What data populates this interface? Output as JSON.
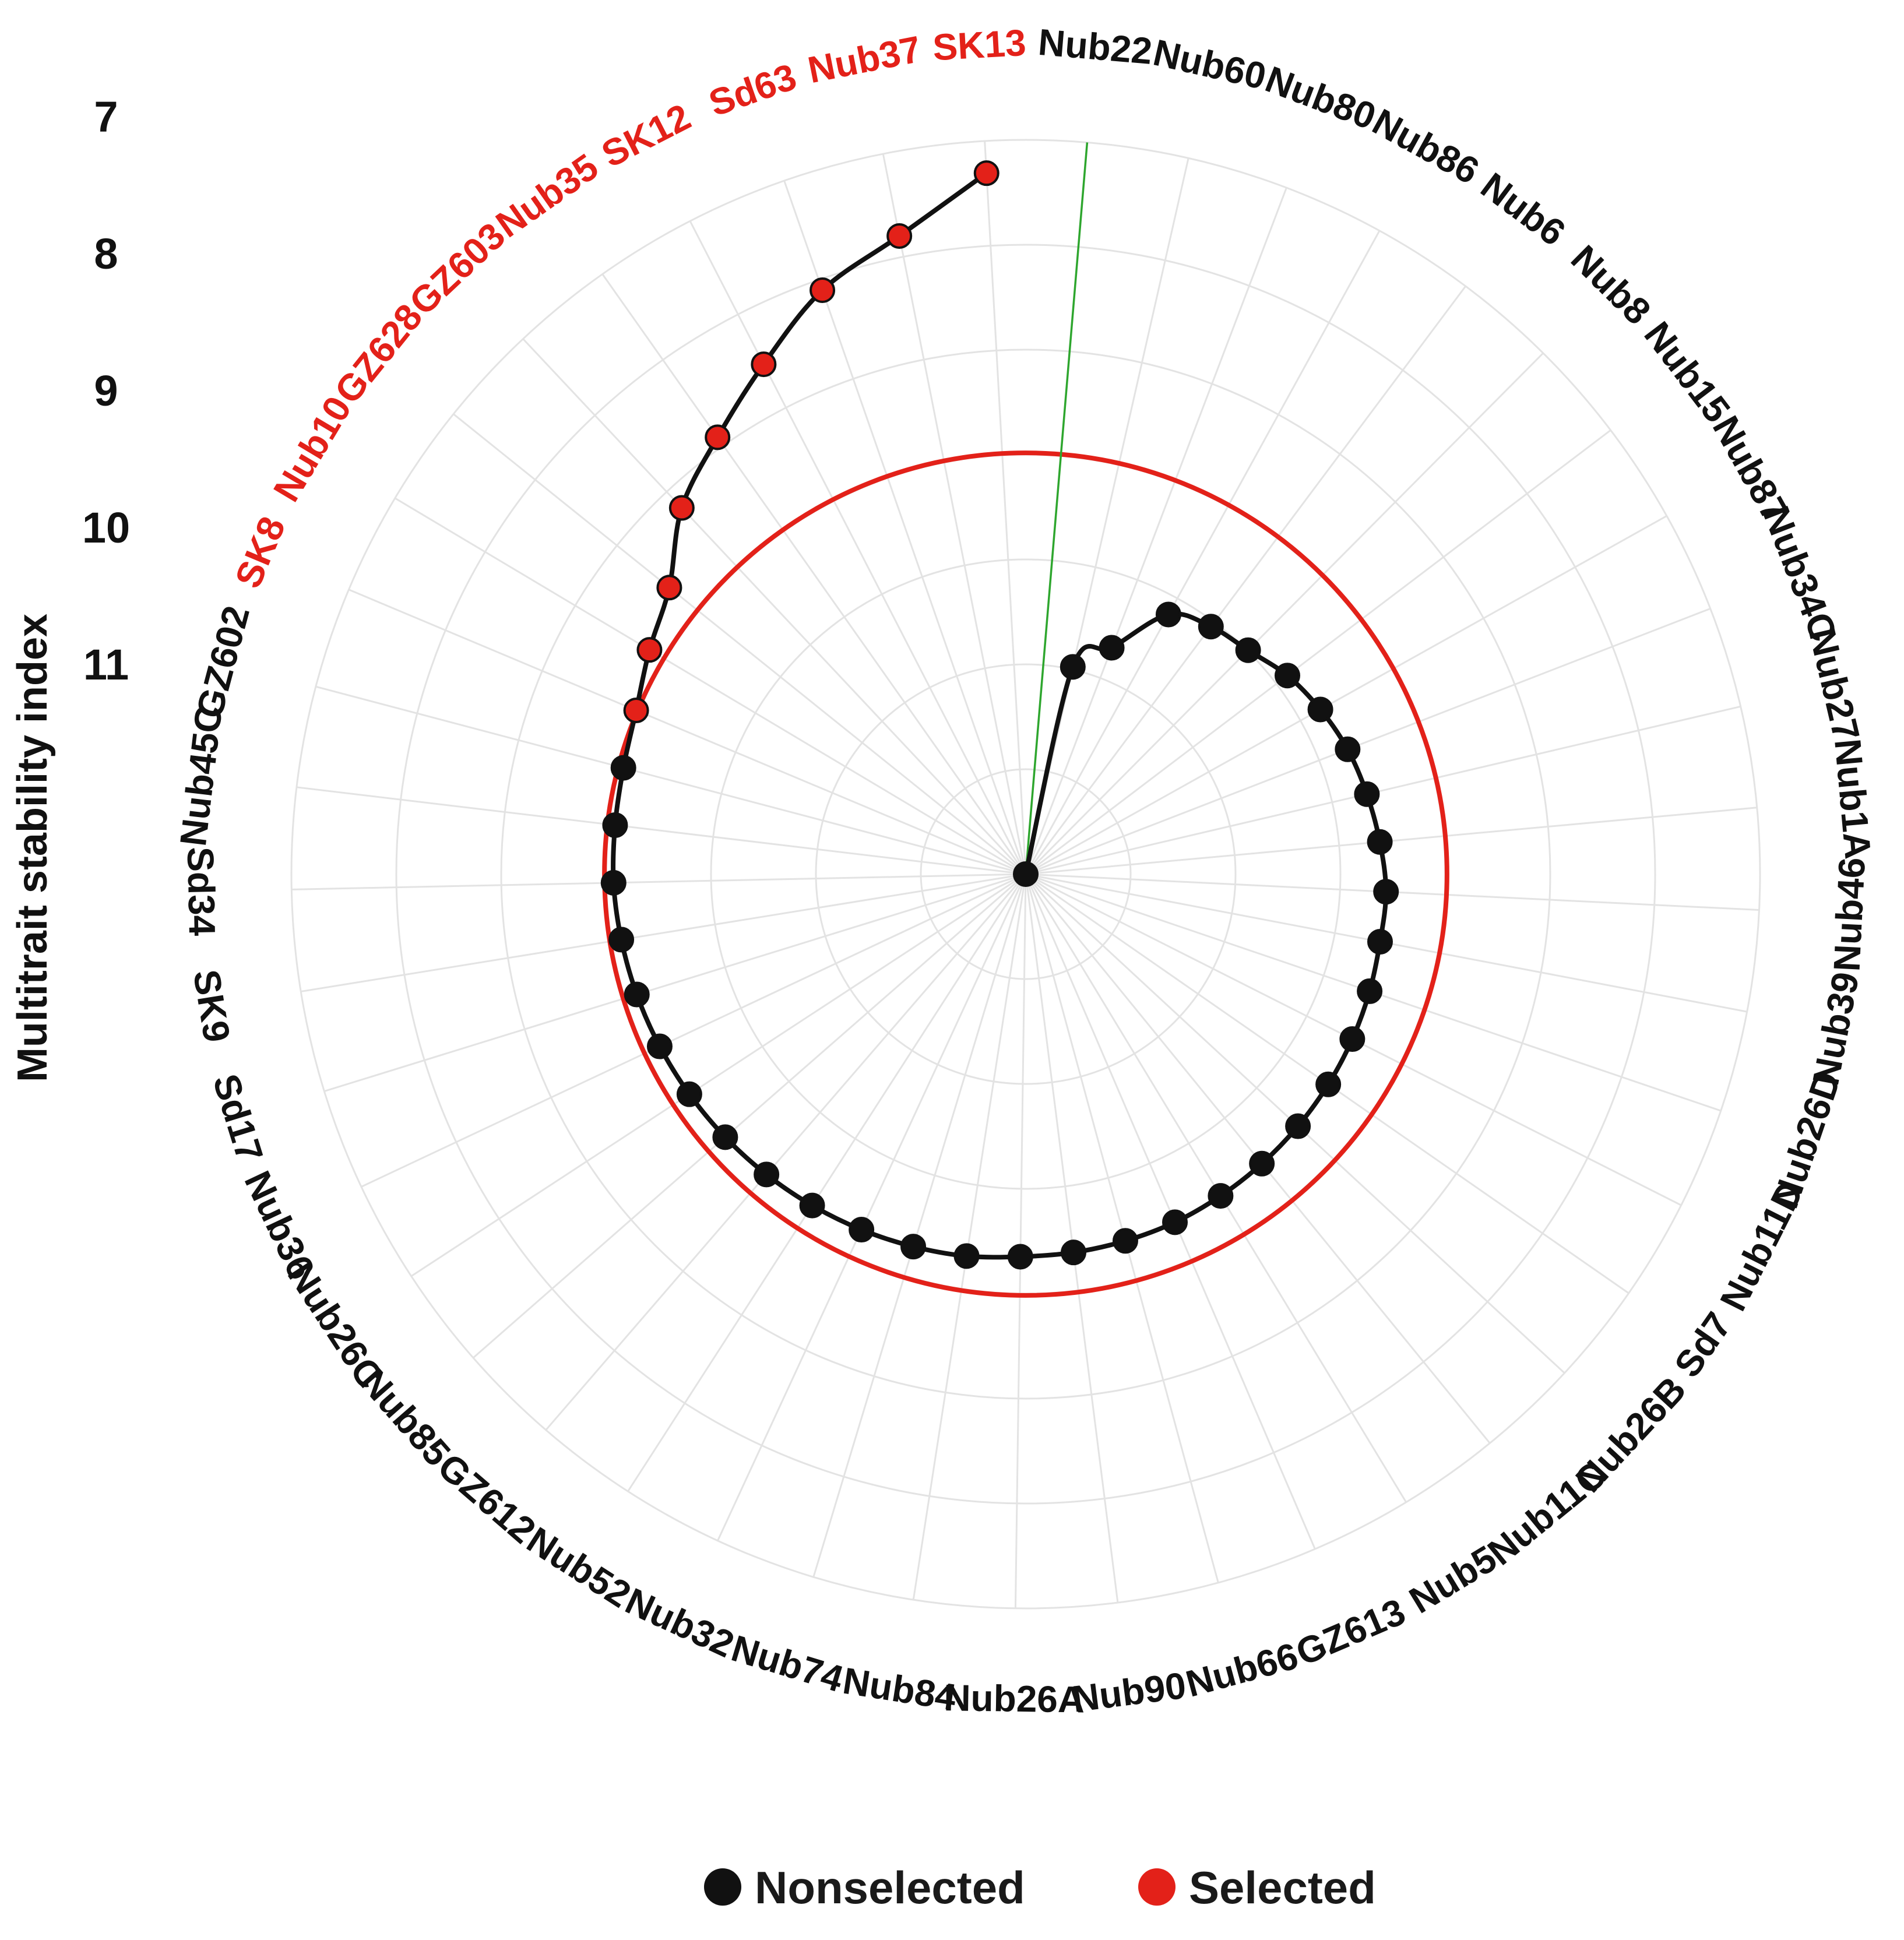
{
  "chart_data": {
    "type": "polar-line",
    "title": "",
    "ylabel": "Multitrait stability index",
    "ylim": [
      11.9,
      6.2
    ],
    "axis_ticks": [
      7,
      8,
      9,
      10,
      11
    ],
    "threshold": 8.63,
    "colors": {
      "selected": "#e32119",
      "nonselected": "#111111",
      "threshold": "#e32119",
      "ideotype_line": "#2ea62e",
      "grid": "#e3e3e3"
    },
    "genotypes": [
      {
        "label": "Nub22",
        "value": 11.9,
        "selected": false
      },
      {
        "label": "Nub60",
        "value": 10.25,
        "selected": false
      },
      {
        "label": "Nub80",
        "value": 10.02,
        "selected": false
      },
      {
        "label": "Nub86",
        "value": 9.6,
        "selected": false
      },
      {
        "label": "Nub6",
        "value": 9.5,
        "selected": false
      },
      {
        "label": "Nub8",
        "value": 9.45,
        "selected": false
      },
      {
        "label": "Nub15",
        "value": 9.35,
        "selected": false
      },
      {
        "label": "Nub87",
        "value": 9.28,
        "selected": false
      },
      {
        "label": "Nub34C",
        "value": 9.22,
        "selected": false
      },
      {
        "label": "Nub27",
        "value": 9.18,
        "selected": false
      },
      {
        "label": "Nub1A",
        "value": 9.14,
        "selected": false
      },
      {
        "label": "Nub46",
        "value": 9.1,
        "selected": false
      },
      {
        "label": "Nub39",
        "value": 9.1,
        "selected": false
      },
      {
        "label": "Nub26D",
        "value": 9.08,
        "selected": false
      },
      {
        "label": "Nub11D",
        "value": 9.06,
        "selected": false
      },
      {
        "label": "Sd7",
        "value": 9.04,
        "selected": false
      },
      {
        "label": "Nub26B",
        "value": 9.02,
        "selected": false
      },
      {
        "label": "Nub11C",
        "value": 9.0,
        "selected": false
      },
      {
        "label": "Nub5",
        "value": 8.98,
        "selected": false
      },
      {
        "label": "GZ613",
        "value": 8.96,
        "selected": false
      },
      {
        "label": "Nub66",
        "value": 8.95,
        "selected": false
      },
      {
        "label": "Nub90",
        "value": 8.94,
        "selected": false
      },
      {
        "label": "Nub26A",
        "value": 8.93,
        "selected": false
      },
      {
        "label": "Nub84",
        "value": 8.9,
        "selected": false
      },
      {
        "label": "Nub74",
        "value": 8.88,
        "selected": false
      },
      {
        "label": "Nub32",
        "value": 8.86,
        "selected": false
      },
      {
        "label": "Nub52",
        "value": 8.84,
        "selected": false
      },
      {
        "label": "GZ612",
        "value": 8.82,
        "selected": false
      },
      {
        "label": "Nub85",
        "value": 8.8,
        "selected": false
      },
      {
        "label": "Nub26C",
        "value": 8.78,
        "selected": false
      },
      {
        "label": "Nub36",
        "value": 8.76,
        "selected": false
      },
      {
        "label": "Sd17",
        "value": 8.74,
        "selected": false
      },
      {
        "label": "SK9",
        "value": 8.72,
        "selected": false
      },
      {
        "label": "Sd34",
        "value": 8.7,
        "selected": false
      },
      {
        "label": "Nub45C",
        "value": 8.69,
        "selected": false
      },
      {
        "label": "GZ602",
        "value": 8.67,
        "selected": false
      },
      {
        "label": "SK8",
        "value": 8.62,
        "selected": true
      },
      {
        "label": "Nub10",
        "value": 8.5,
        "selected": true
      },
      {
        "label": "GZ628",
        "value": 8.35,
        "selected": true
      },
      {
        "label": "GZ603",
        "value": 8.0,
        "selected": true
      },
      {
        "label": "Nub35",
        "value": 7.75,
        "selected": true
      },
      {
        "label": "SK12",
        "value": 7.45,
        "selected": true
      },
      {
        "label": "Sd63",
        "value": 7.1,
        "selected": true
      },
      {
        "label": "Nub37",
        "value": 6.85,
        "selected": true
      },
      {
        "label": "SK13",
        "value": 6.45,
        "selected": true
      }
    ],
    "legend": [
      {
        "label": "Nonselected",
        "color": "#111111"
      },
      {
        "label": "Selected",
        "color": "#e32119"
      }
    ],
    "legend_position": "bottom"
  }
}
